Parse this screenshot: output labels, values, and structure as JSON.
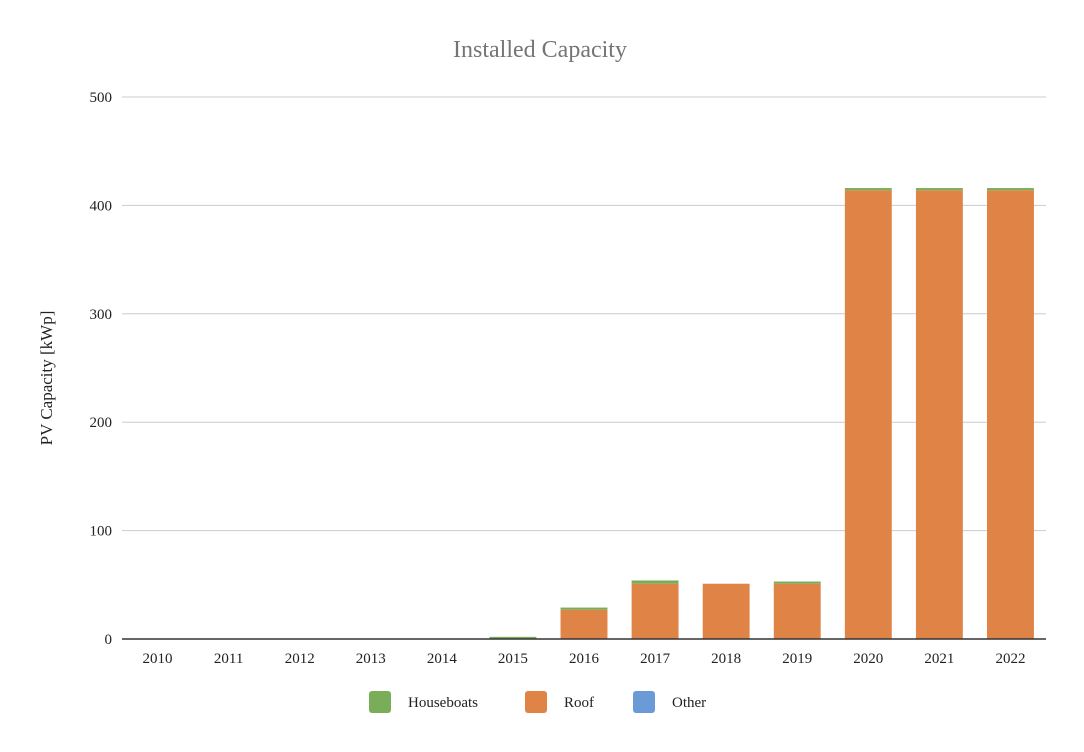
{
  "chart_data": {
    "type": "bar",
    "stacked": true,
    "title": "Installed Capacity",
    "xlabel": "",
    "ylabel": "PV Capacity [kWp]",
    "ylim": [
      0,
      500
    ],
    "yticks": [
      "0",
      "100",
      "200",
      "300",
      "400",
      "500"
    ],
    "grid": true,
    "legend_position": "bottom",
    "categories": [
      "2010",
      "2011",
      "2012",
      "2013",
      "2014",
      "2015",
      "2016",
      "2017",
      "2018",
      "2019",
      "2020",
      "2021",
      "2022"
    ],
    "series": [
      {
        "name": "Roof",
        "color": "#e08346",
        "values": [
          0,
          0,
          0,
          0,
          0,
          0,
          27,
          51,
          51,
          51,
          414,
          414,
          414
        ]
      },
      {
        "name": "Houseboats",
        "color": "#79ad57",
        "values": [
          0,
          0,
          0,
          0,
          0,
          2,
          2,
          3,
          0,
          2,
          2,
          2,
          2
        ]
      },
      {
        "name": "Other",
        "color": "#6b9bd6",
        "values": [
          0,
          0,
          0,
          0,
          0,
          0,
          0,
          0,
          0,
          0,
          0,
          0,
          0
        ]
      }
    ],
    "legend_order": [
      "Houseboats",
      "Roof",
      "Other"
    ]
  }
}
